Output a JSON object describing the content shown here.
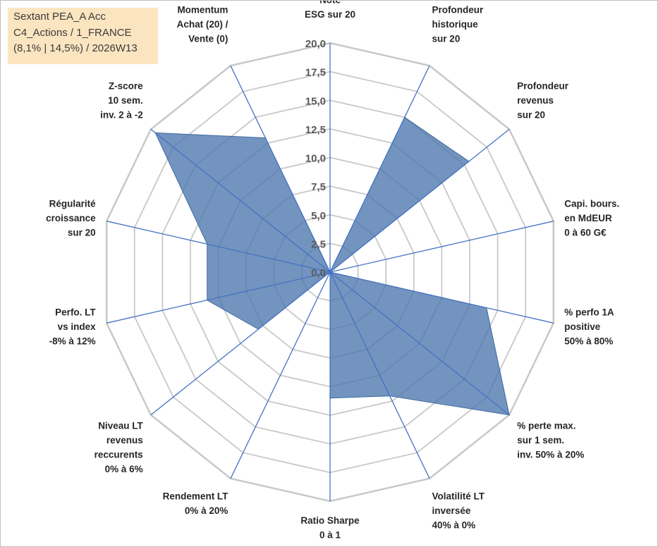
{
  "header": {
    "line1": "Sextant PEA_A Acc",
    "line2": "C4_Actions / 1_FRANCE",
    "line3": "(8,1% | 14,5%) / 2026W13"
  },
  "chart_data": {
    "type": "radar",
    "title": "Sextant PEA_A Acc",
    "rmax": 20,
    "ticks": [
      "0,0",
      "2,5",
      "5,0",
      "7,5",
      "10,0",
      "12,5",
      "15,0",
      "17,5",
      "20,0"
    ],
    "tick_values": [
      0,
      2.5,
      5,
      7.5,
      10,
      12.5,
      15,
      17.5,
      20
    ],
    "axes": [
      {
        "label": [
          "Note",
          "ESG sur 20"
        ],
        "value": 0
      },
      {
        "label": [
          "Profondeur",
          "historique",
          "sur 20"
        ],
        "value": 15
      },
      {
        "label": [
          "Profondeur",
          "revenus",
          "sur 20"
        ],
        "value": 15.5
      },
      {
        "label": [
          "Capi. bours.",
          "en MdEUR",
          "0 à 60 G€"
        ],
        "value": 0
      },
      {
        "label": [
          "% perfo 1A",
          "positive",
          "50% à 80%"
        ],
        "value": 14
      },
      {
        "label": [
          "% perte max.",
          "sur 1 sem.",
          "inv. 50% à 20%"
        ],
        "value": 20
      },
      {
        "label": [
          "Volatilité LT",
          "inversée",
          "40% à 0%"
        ],
        "value": 12
      },
      {
        "label": [
          "Ratio Sharpe",
          "0 à 1"
        ],
        "value": 11
      },
      {
        "label": [
          "Rendement LT",
          "0% à 20%"
        ],
        "value": 0
      },
      {
        "label": [
          "Niveau LT",
          "revenus",
          "reccurents",
          "0% à 6%"
        ],
        "value": 8
      },
      {
        "label": [
          "Perfo. LT",
          "vs index",
          "-8% à 12%"
        ],
        "value": 11
      },
      {
        "label": [
          "Régularité",
          "croissance",
          "sur 20"
        ],
        "value": 11
      },
      {
        "label": [
          "Z-score",
          "10 sem.",
          "inv. 2 à -2"
        ],
        "value": 19.5
      },
      {
        "label": [
          "Momentum",
          "Achat (20) /",
          "Vente (0)"
        ],
        "value": 13
      }
    ],
    "series": [
      {
        "name": "Sextant PEA_A Acc",
        "color": "#4a76ac"
      }
    ],
    "grid_color": "#c8c8c8",
    "axis_color": "#4472c4"
  }
}
